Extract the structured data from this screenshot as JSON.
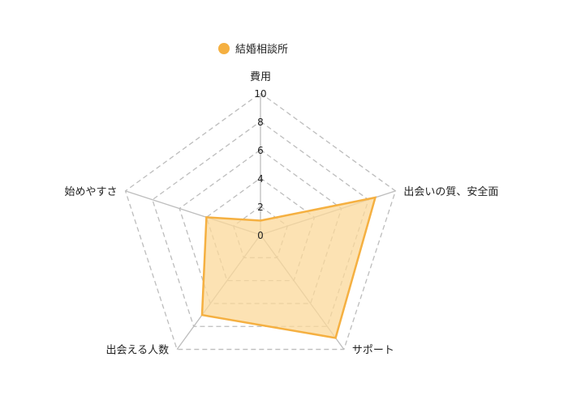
{
  "chart_data": {
    "type": "radar",
    "axes": [
      "費用",
      "出会いの質、安全面",
      "サポート",
      "出会える人数",
      "始めやすさ"
    ],
    "rlim": [
      0,
      10
    ],
    "ticks": [
      "0",
      "2",
      "4",
      "6",
      "8",
      "10"
    ],
    "grid": true,
    "legend_position": "top-left",
    "series": [
      {
        "name": "結婚相談所",
        "values": [
          1,
          8.5,
          9,
          7,
          4
        ],
        "color": "#f5b041",
        "fill": "#fbd89a"
      }
    ]
  }
}
